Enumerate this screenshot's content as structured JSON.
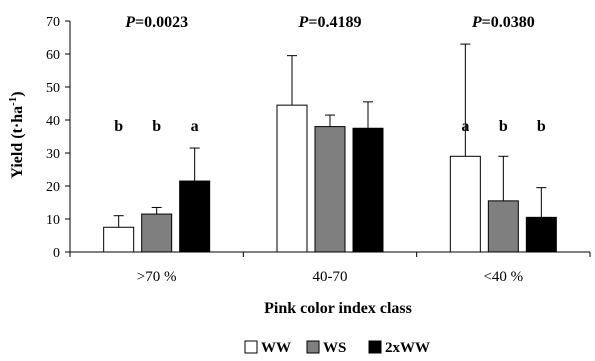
{
  "chart_data": {
    "type": "bar",
    "ylabel_main": "Yield (t·ha",
    "ylabel_sup": "-1",
    "ylabel_close": ")",
    "xlabel": "Pink color index class",
    "ylim": [
      0,
      70
    ],
    "yticks": [
      0,
      10,
      20,
      30,
      40,
      50,
      60,
      70
    ],
    "grid": false,
    "legend_position": "bottom-center",
    "categories": [
      ">70 %",
      "40-70",
      "<40 %"
    ],
    "p_values": [
      {
        "label": "P",
        "value": "=0.0023"
      },
      {
        "label": "P",
        "value": "=0.4189"
      },
      {
        "label": "P",
        "value": "=0.0380"
      }
    ],
    "series": [
      {
        "name": "WW",
        "color": "#ffffff",
        "values": [
          7.5,
          44.5,
          29
        ],
        "errors": [
          3.5,
          15,
          34
        ],
        "letters": [
          "b",
          "",
          "a"
        ]
      },
      {
        "name": "WS",
        "color": "#7f7f7f",
        "values": [
          11.5,
          38,
          15.5
        ],
        "errors": [
          2,
          3.5,
          13.5
        ],
        "letters": [
          "b",
          "",
          "b"
        ]
      },
      {
        "name": "2xWW",
        "color": "#000000",
        "values": [
          21.5,
          37.5,
          10.5
        ],
        "errors": [
          10,
          8,
          9
        ],
        "letters": [
          "a",
          "",
          "b"
        ]
      }
    ]
  }
}
